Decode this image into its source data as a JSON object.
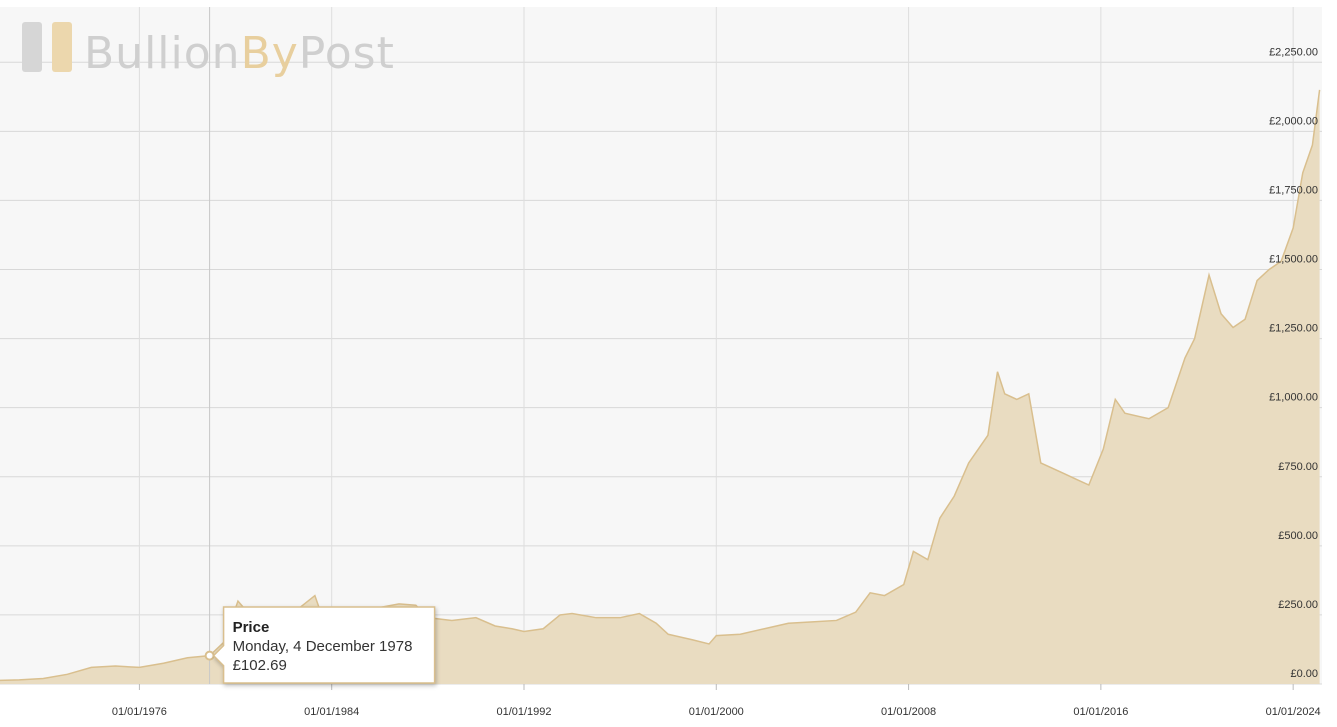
{
  "logo": {
    "parts": [
      "Bullion",
      "By",
      "Post"
    ]
  },
  "chart_data": {
    "type": "area",
    "x": [
      1970.2,
      1971,
      1972,
      1973,
      1974,
      1975,
      1976,
      1977,
      1978,
      1978.92,
      1979.5,
      1980.1,
      1980.5,
      1981,
      1982,
      1983.3,
      1983.5,
      1984,
      1985,
      1986.8,
      1987.5,
      1988,
      1989,
      1990,
      1990.8,
      1991.5,
      1992,
      1992.8,
      1993.5,
      1994,
      1995,
      1996,
      1996.8,
      1997.5,
      1998,
      1999,
      1999.7,
      2000,
      2001,
      2002,
      2003,
      2004,
      2005,
      2005.8,
      2006.4,
      2007,
      2007.8,
      2008.2,
      2008.8,
      2009.3,
      2009.9,
      2010.5,
      2011.3,
      2011.7,
      2012,
      2012.5,
      2013,
      2013.5,
      2014,
      2014.5,
      2015,
      2015.5,
      2016.1,
      2016.6,
      2017,
      2018,
      2018.8,
      2019.5,
      2019.9,
      2020.5,
      2021,
      2021.5,
      2022,
      2022.5,
      2023,
      2023.5,
      2024,
      2024.4,
      2024.8,
      2025.1
    ],
    "series": [
      {
        "name": "Price",
        "color": "#d9bf8e",
        "fill": "#e9dcc1",
        "values": [
          13,
          15,
          20,
          35,
          60,
          65,
          60,
          75,
          95,
          102.69,
          150,
          300,
          260,
          250,
          230,
          320,
          270,
          260,
          260,
          290,
          285,
          240,
          230,
          240,
          210,
          200,
          190,
          200,
          250,
          255,
          240,
          240,
          255,
          220,
          180,
          160,
          145,
          175,
          180,
          200,
          220,
          225,
          230,
          260,
          330,
          320,
          360,
          480,
          450,
          600,
          680,
          800,
          900,
          1130,
          1050,
          1030,
          1050,
          800,
          780,
          760,
          740,
          720,
          850,
          1030,
          980,
          960,
          1000,
          1180,
          1250,
          1480,
          1340,
          1290,
          1320,
          1460,
          1500,
          1530,
          1650,
          1850,
          1950,
          2150
        ]
      }
    ],
    "xlim": [
      1970.2,
      2025.2
    ],
    "xticks": [
      {
        "value": 1976,
        "label": "01/01/1976"
      },
      {
        "value": 1984,
        "label": "01/01/1984"
      },
      {
        "value": 1992,
        "label": "01/01/1992"
      },
      {
        "value": 2000,
        "label": "01/01/2000"
      },
      {
        "value": 2008,
        "label": "01/01/2008"
      },
      {
        "value": 2016,
        "label": "01/01/2016"
      },
      {
        "value": 2024,
        "label": "01/01/2024"
      }
    ],
    "ylim": [
      0,
      2450
    ],
    "yticks": [
      {
        "value": 0,
        "label": "£0.00"
      },
      {
        "value": 250,
        "label": "£250.00"
      },
      {
        "value": 500,
        "label": "£500.00"
      },
      {
        "value": 750,
        "label": "£750.00"
      },
      {
        "value": 1000,
        "label": "£1,000.00"
      },
      {
        "value": 1250,
        "label": "£1,250.00"
      },
      {
        "value": 1500,
        "label": "£1,500.00"
      },
      {
        "value": 1750,
        "label": "£1,750.00"
      },
      {
        "value": 2000,
        "label": "£2,000.00"
      },
      {
        "value": 2250,
        "label": "£2,250.00"
      }
    ],
    "grid": true,
    "tooltip": {
      "x": 1978.92,
      "date": "Monday, 4 December 1978",
      "value": 102.69,
      "label": "£102.69"
    }
  }
}
